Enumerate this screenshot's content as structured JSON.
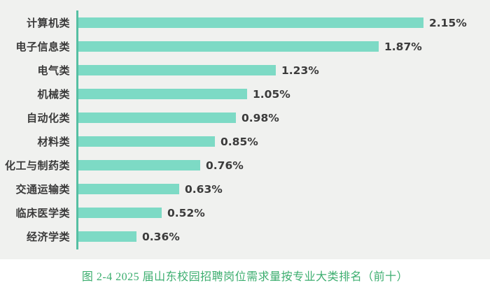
{
  "chart_data": {
    "type": "bar",
    "orientation": "horizontal",
    "title": "",
    "caption": "图 2-4 2025 届山东校园招聘岗位需求量按专业大类排名（前十）",
    "categories": [
      "计算机类",
      "电子信息类",
      "电气类",
      "机械类",
      "自动化类",
      "材料类",
      "化工与制药类",
      "交通运输类",
      "临床医学类",
      "经济学类"
    ],
    "values": [
      2.15,
      1.87,
      1.23,
      1.05,
      0.98,
      0.85,
      0.76,
      0.63,
      0.52,
      0.36
    ],
    "value_labels": [
      "2.15%",
      "1.87%",
      "1.23%",
      "1.05%",
      "0.98%",
      "0.85%",
      "0.76%",
      "0.63%",
      "0.52%",
      "0.36%"
    ],
    "xlabel": "",
    "ylabel": "",
    "xlim": [
      0,
      2.35
    ],
    "grid": false,
    "legend": false,
    "colors": {
      "bar": "#7ddac5",
      "axis": "#55bfa3",
      "text": "#3b3b3b",
      "caption": "#3cae6f",
      "plot_background": "#f0f1ef",
      "page_background": "#ffffff"
    }
  }
}
